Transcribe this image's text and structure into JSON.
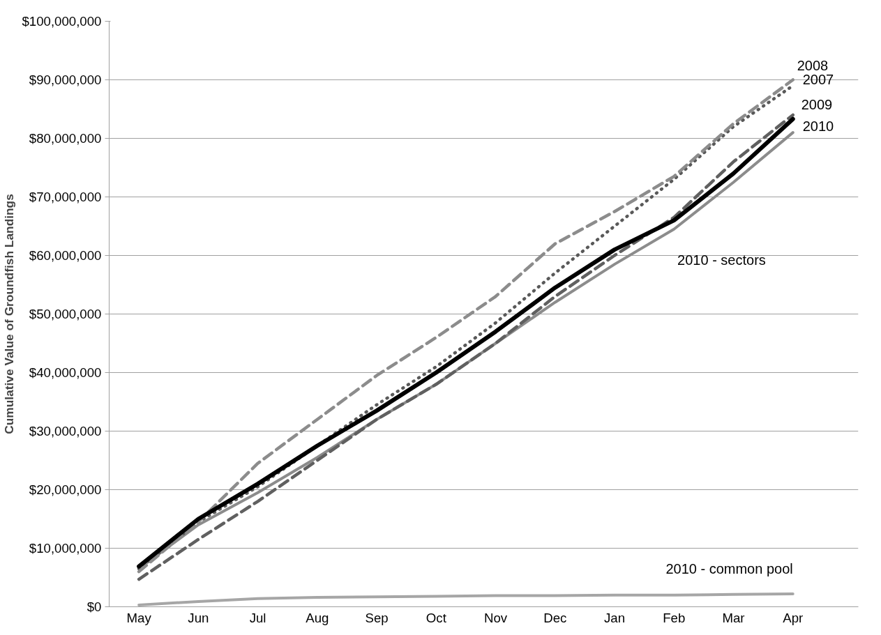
{
  "chart_data": {
    "type": "line",
    "ylabel": "Cumulative Value of Groundfish Landings",
    "categories": [
      "May",
      "Jun",
      "Jul",
      "Aug",
      "Sep",
      "Oct",
      "Nov",
      "Dec",
      "Jan",
      "Feb",
      "Mar",
      "Apr"
    ],
    "ylim": [
      0,
      100000000
    ],
    "yticks": [
      {
        "value": 0,
        "label": "$0"
      },
      {
        "value": 10000000,
        "label": "$10,000,000"
      },
      {
        "value": 20000000,
        "label": "$20,000,000"
      },
      {
        "value": 30000000,
        "label": "$30,000,000"
      },
      {
        "value": 40000000,
        "label": "$40,000,000"
      },
      {
        "value": 50000000,
        "label": "$50,000,000"
      },
      {
        "value": 60000000,
        "label": "$60,000,000"
      },
      {
        "value": 70000000,
        "label": "$70,000,000"
      },
      {
        "value": 80000000,
        "label": "$80,000,000"
      },
      {
        "value": 90000000,
        "label": "$90,000,000"
      },
      {
        "value": 100000000,
        "label": "$100,000,000"
      }
    ],
    "grid": "y",
    "marker": "none",
    "series": [
      {
        "name": "2010 - common pool",
        "color": "#a6a6a6",
        "line_style": "solid",
        "values": [
          300000,
          900000,
          1400000,
          1600000,
          1700000,
          1800000,
          1900000,
          1900000,
          2000000,
          2000000,
          2100000,
          2200000
        ]
      },
      {
        "name": "2010 - sectors",
        "color": "#8c8c8c",
        "line_style": "solid",
        "values": [
          6500000,
          14000000,
          19500000,
          25500000,
          32000000,
          38000000,
          45000000,
          52000000,
          58500000,
          64500000,
          72500000,
          81000000
        ]
      },
      {
        "name": "2009",
        "color": "#606060",
        "line_style": "dashed",
        "values": [
          4700000,
          11500000,
          18000000,
          25000000,
          32000000,
          38000000,
          45000000,
          53000000,
          60000000,
          66500000,
          76000000,
          84000000
        ]
      },
      {
        "name": "2007",
        "color": "#595959",
        "line_style": "dotted",
        "values": [
          6500000,
          14500000,
          20500000,
          27500000,
          34500000,
          41000000,
          48500000,
          57000000,
          65000000,
          73000000,
          82000000,
          89000000
        ]
      },
      {
        "name": "2008",
        "color": "#8c8c8c",
        "line_style": "dashed",
        "values": [
          6000000,
          14500000,
          24500000,
          32000000,
          39500000,
          46000000,
          53000000,
          62000000,
          67500000,
          73500000,
          82500000,
          90000000
        ]
      },
      {
        "name": "2010",
        "color": "#000000",
        "line_style": "solid",
        "values": [
          6900000,
          15000000,
          21000000,
          27500000,
          33500000,
          40000000,
          47000000,
          54500000,
          61000000,
          66000000,
          74000000,
          83300000
        ]
      }
    ]
  }
}
